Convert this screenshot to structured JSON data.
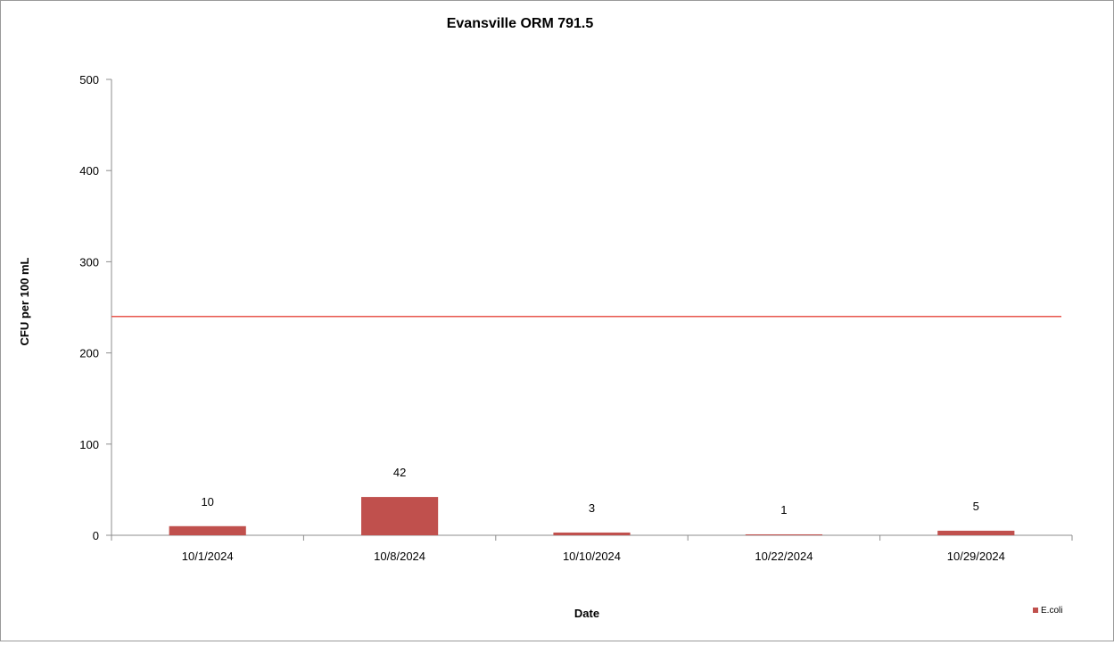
{
  "chart_data": {
    "type": "bar",
    "title": "Evansville ORM 791.5",
    "xlabel": "Date",
    "ylabel": "CFU per 100 mL",
    "categories": [
      "10/1/2024",
      "10/8/2024",
      "10/10/2024",
      "10/22/2024",
      "10/29/2024"
    ],
    "series": [
      {
        "name": "E.coli",
        "values": [
          10,
          42,
          3,
          1,
          5
        ],
        "data_labels": [
          "10",
          "42",
          "3",
          "1",
          "5"
        ],
        "color": "#c0504d"
      }
    ],
    "reference_line": {
      "value": 240,
      "color": "#e8574e"
    },
    "ylim": [
      0,
      500
    ],
    "yticks": [
      0,
      100,
      200,
      300,
      400,
      500
    ],
    "ytick_labels": [
      "0",
      "100",
      "200",
      "300",
      "400",
      "500"
    ],
    "grid": false,
    "legend_position": "bottom-right"
  }
}
